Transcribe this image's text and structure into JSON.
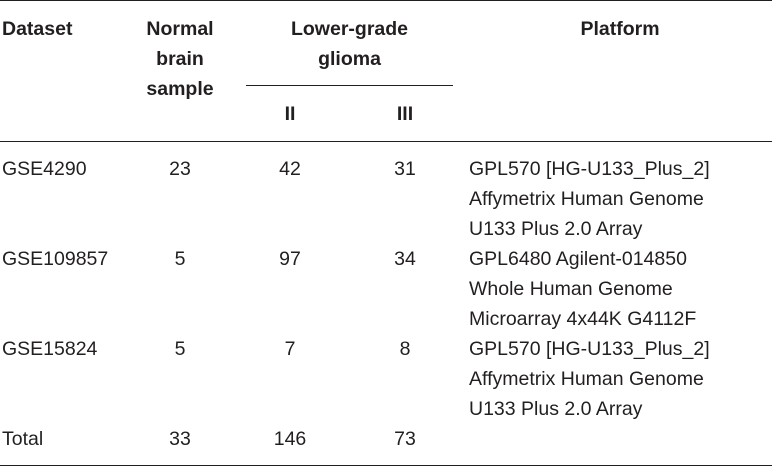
{
  "table": {
    "headers": {
      "dataset": "Dataset",
      "normal": [
        "Normal",
        "brain",
        "sample"
      ],
      "lgg": [
        "Lower-grade",
        "glioma"
      ],
      "grade_ii": "II",
      "grade_iii": "III",
      "platform": "Platform"
    },
    "rows": [
      {
        "dataset": "GSE4290",
        "normal": "23",
        "ii": "42",
        "iii": "31",
        "platform": [
          "GPL570 [HG-U133_Plus_2]",
          "Affymetrix Human Genome",
          "U133 Plus 2.0 Array"
        ]
      },
      {
        "dataset": "GSE109857",
        "normal": "5",
        "ii": "97",
        "iii": "34",
        "platform": [
          "GPL6480 Agilent-014850",
          "Whole Human Genome",
          "Microarray 4x44K G4112F"
        ]
      },
      {
        "dataset": "GSE15824",
        "normal": "5",
        "ii": "7",
        "iii": "8",
        "platform": [
          "GPL570 [HG-U133_Plus_2]",
          "Affymetrix Human Genome",
          "U133 Plus 2.0 Array"
        ]
      }
    ],
    "total": {
      "label": "Total",
      "normal": "33",
      "ii": "146",
      "iii": "73"
    }
  }
}
